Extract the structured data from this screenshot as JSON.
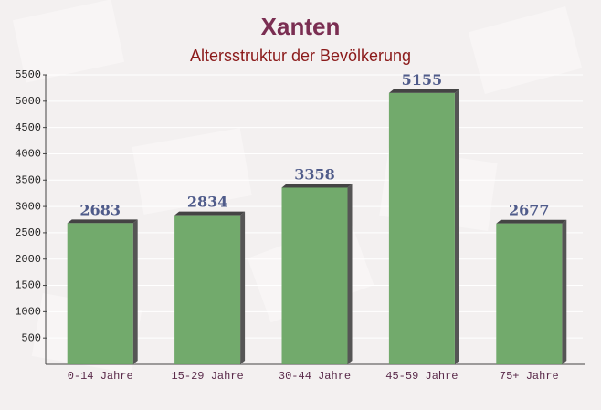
{
  "chart_data": {
    "type": "bar",
    "title": "Xanten",
    "subtitle": "Altersstruktur der Bevölkerung",
    "categories": [
      "0-14 Jahre",
      "15-29 Jahre",
      "30-44 Jahre",
      "45-59 Jahre",
      "75+ Jahre"
    ],
    "values": [
      2683,
      2834,
      3358,
      5155,
      2677
    ],
    "color": "#6aa564",
    "ylim": [
      0,
      5500
    ],
    "yticks": [
      500,
      1000,
      1500,
      2000,
      2500,
      3000,
      3500,
      4000,
      4500,
      5000,
      5500
    ],
    "grid": true
  }
}
